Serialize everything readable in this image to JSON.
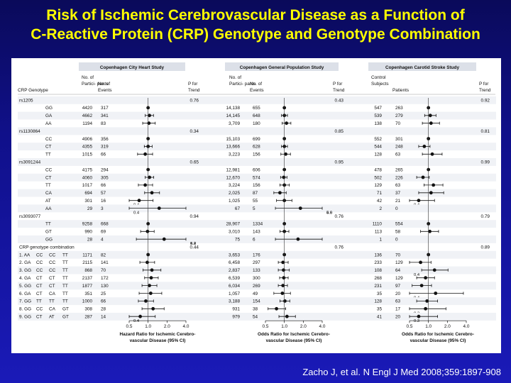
{
  "slide": {
    "title_line1": "Risk of Ischemic Cerebrovascular Disease as a Function of",
    "title_line2": "C-Reactive Protein (CRP) Genotype and Genotype Combination",
    "citation": "Zacho J, et al. N Engl J Med 2008;359:1897-908"
  },
  "colors": {
    "background": "#1010a0",
    "title": "#ffff00",
    "header_bar": "#dce0e8",
    "dot": "#111111"
  },
  "table": {
    "first_col_header": "CRP Genotype",
    "combo_header": "CRP genotype combination",
    "studies": [
      {
        "name": "Copenhagen City Heart Study",
        "col1": "No. of Partici- pants",
        "col2": "No. of Events",
        "col3": "P for Trend",
        "axis_label_line1": "Hazard Ratio for Ischemic Cerebro-",
        "axis_label_line2": "vascular Disease (95% CI)"
      },
      {
        "name": "Copenhagen General Population Study",
        "col1": "No. of Partici- pants",
        "col2": "No. of Events",
        "col3": "P for Trend",
        "axis_label_line1": "Odds Ratio for Ischemic Cerebro-",
        "axis_label_line2": "vascular Disease (95% CI)"
      },
      {
        "name": "Copenhagen Carotid Stroke Study",
        "col1": "Control Subjects",
        "col2": "Patients",
        "col3": "P for Trend",
        "axis_label_line1": "Odds Ratio for Ischemic Cerebro-",
        "axis_label_line2": "vascular Disease (95% CI)"
      }
    ]
  },
  "chart_data": {
    "type": "forest",
    "x_scale": "log",
    "xlim": [
      0.5,
      4.0
    ],
    "x_ticks": [
      "0.5",
      "1.0",
      "2.0",
      "4.0"
    ],
    "reference_line": 1.0,
    "rows": [
      {
        "kind": "header",
        "label": "rs1205",
        "p": [
          "0.76",
          "0.43",
          "0.92"
        ]
      },
      {
        "kind": "data",
        "genotype": [
          "GG"
        ],
        "cells": [
          [
            "4420",
            "317"
          ],
          [
            "14,138",
            "655"
          ],
          [
            "547",
            "263"
          ]
        ],
        "ci": [
          [
            1.0,
            1.0,
            1.0
          ],
          [
            1.0,
            1.0,
            1.0
          ],
          [
            1.0,
            1.0,
            1.0
          ]
        ]
      },
      {
        "kind": "data",
        "genotype": [
          "GA"
        ],
        "cells": [
          [
            "4662",
            "341"
          ],
          [
            "14,145",
            "648"
          ],
          [
            "539",
            "279"
          ]
        ],
        "ci": [
          [
            1.05,
            0.9,
            1.22
          ],
          [
            1.0,
            0.9,
            1.12
          ],
          [
            1.07,
            0.87,
            1.32
          ]
        ]
      },
      {
        "kind": "data",
        "genotype": [
          "AA"
        ],
        "cells": [
          [
            "1194",
            "83"
          ],
          [
            "3,709",
            "180"
          ],
          [
            "138",
            "70"
          ]
        ],
        "ci": [
          [
            1.03,
            0.82,
            1.3
          ],
          [
            1.08,
            0.92,
            1.27
          ],
          [
            1.1,
            0.8,
            1.5
          ]
        ]
      },
      {
        "kind": "header",
        "label": "rs1130864",
        "p": [
          "0.34",
          "0.85",
          "0.81"
        ]
      },
      {
        "kind": "data",
        "genotype": [
          "CC"
        ],
        "cells": [
          [
            "4906",
            "356"
          ],
          [
            "15,103",
            "699"
          ],
          [
            "552",
            "301"
          ]
        ],
        "ci": [
          [
            1.0,
            1.0,
            1.0
          ],
          [
            1.0,
            1.0,
            1.0
          ],
          [
            1.0,
            1.0,
            1.0
          ]
        ]
      },
      {
        "kind": "data",
        "genotype": [
          "CT"
        ],
        "cells": [
          [
            "4355",
            "319"
          ],
          [
            "13,666",
            "628"
          ],
          [
            "544",
            "248"
          ]
        ],
        "ci": [
          [
            1.0,
            0.87,
            1.16
          ],
          [
            1.0,
            0.9,
            1.12
          ],
          [
            0.86,
            0.7,
            1.06
          ]
        ]
      },
      {
        "kind": "data",
        "genotype": [
          "TT"
        ],
        "cells": [
          [
            "1015",
            "66"
          ],
          [
            "3,223",
            "156"
          ],
          [
            "128",
            "63"
          ]
        ],
        "ci": [
          [
            0.9,
            0.68,
            1.18
          ],
          [
            1.05,
            0.88,
            1.25
          ],
          [
            1.15,
            0.8,
            1.65
          ]
        ]
      },
      {
        "kind": "header",
        "label": "rs3091244",
        "p": [
          "0.65",
          "0.95",
          "0.99"
        ]
      },
      {
        "kind": "data",
        "genotype": [
          "CC"
        ],
        "cells": [
          [
            "4175",
            "294"
          ],
          [
            "12,981",
            "606"
          ],
          [
            "478",
            "265"
          ]
        ],
        "ci": [
          [
            1.0,
            1.0,
            1.0
          ],
          [
            1.0,
            1.0,
            1.0
          ],
          [
            1.0,
            1.0,
            1.0
          ]
        ]
      },
      {
        "kind": "data",
        "genotype": [
          "CT"
        ],
        "cells": [
          [
            "4060",
            "305"
          ],
          [
            "12,670",
            "574"
          ],
          [
            "502",
            "226"
          ]
        ],
        "ci": [
          [
            1.05,
            0.9,
            1.23
          ],
          [
            0.98,
            0.87,
            1.1
          ],
          [
            0.82,
            0.65,
            1.03
          ]
        ]
      },
      {
        "kind": "data",
        "genotype": [
          "TT"
        ],
        "cells": [
          [
            "1017",
            "66"
          ],
          [
            "3,224",
            "156"
          ],
          [
            "129",
            "63"
          ]
        ],
        "ci": [
          [
            0.9,
            0.7,
            1.18
          ],
          [
            1.0,
            0.85,
            1.2
          ],
          [
            1.2,
            0.85,
            1.7
          ]
        ]
      },
      {
        "kind": "data",
        "genotype": [
          "CA"
        ],
        "cells": [
          [
            "694",
            "57"
          ],
          [
            "2,025",
            "87"
          ],
          [
            "71",
            "37"
          ]
        ],
        "ci": [
          [
            1.15,
            0.88,
            1.52
          ],
          [
            0.85,
            0.68,
            1.07
          ],
          [
            1.1,
            0.7,
            1.75
          ]
        ]
      },
      {
        "kind": "data",
        "genotype": [
          "AT"
        ],
        "cells": [
          [
            "301",
            "16"
          ],
          [
            "1,025",
            "55"
          ],
          [
            "42",
            "21"
          ]
        ],
        "ci": [
          [
            0.72,
            0.4,
            1.2
          ],
          [
            1.0,
            0.75,
            1.32
          ],
          [
            0.7,
            0.4,
            1.25
          ]
        ],
        "labels": [
          [
            "0.4",
            "left",
            0
          ],
          [],
          [
            "0.4",
            "below",
            0
          ]
        ]
      },
      {
        "kind": "data",
        "genotype": [
          "AA"
        ],
        "cells": [
          [
            "29",
            "3"
          ],
          [
            "67",
            "5"
          ],
          [
            "2",
            "0"
          ]
        ],
        "ci": [
          [
            1.5,
            0.4,
            5.0
          ],
          [
            1.8,
            0.72,
            4.6
          ],
          []
        ],
        "labels": [
          [
            "0.4",
            "left",
            0
          ],
          [
            "5.0",
            "right",
            0
          ]
        ],
        "labels_b": [
          [],
          [
            "4.6",
            "right",
            0
          ]
        ]
      },
      {
        "kind": "header",
        "label": "rs3093077",
        "p": [
          "0.94",
          "0.76",
          "0.79"
        ]
      },
      {
        "kind": "data",
        "genotype": [
          "TT"
        ],
        "cells": [
          [
            "9258",
            "668"
          ],
          [
            "28,907",
            "1334"
          ],
          [
            "1110",
            "554"
          ]
        ],
        "ci": [
          [
            1.0,
            1.0,
            1.0
          ],
          [
            1.0,
            1.0,
            1.0
          ],
          [
            1.0,
            1.0,
            1.0
          ]
        ]
      },
      {
        "kind": "data",
        "genotype": [
          "GT"
        ],
        "cells": [
          [
            "990",
            "69"
          ],
          [
            "3,010",
            "143"
          ],
          [
            "113",
            "58"
          ]
        ],
        "ci": [
          [
            0.98,
            0.76,
            1.25
          ],
          [
            1.0,
            0.85,
            1.18
          ],
          [
            1.05,
            0.75,
            1.45
          ]
        ]
      },
      {
        "kind": "data",
        "genotype": [
          "GG"
        ],
        "cells": [
          [
            "28",
            "4"
          ],
          [
            "75",
            "6"
          ],
          [
            "1",
            "0"
          ]
        ],
        "ci": [
          [
            1.8,
            0.65,
            5.4
          ],
          [
            1.65,
            0.72,
            4.2
          ],
          []
        ],
        "labels": [
          [
            "5.4",
            "right",
            0
          ]
        ],
        "labels_b": [
          [
            "4.2",
            "right",
            0
          ]
        ]
      },
      {
        "kind": "combo_header",
        "label": "CRP genotype combination",
        "p": [
          "0.44",
          "0.76",
          "0.89"
        ]
      },
      {
        "kind": "data",
        "genotype": [
          "1. AA",
          "CC",
          "CC",
          "TT"
        ],
        "cells": [
          [
            "1171",
            "82"
          ],
          [
            "3,653",
            "176"
          ],
          [
            "136",
            "70"
          ]
        ],
        "ci": [
          [
            1.0,
            1.0,
            1.0
          ],
          [
            1.0,
            1.0,
            1.0
          ],
          [
            1.0,
            1.0,
            1.0
          ]
        ]
      },
      {
        "kind": "data",
        "genotype": [
          "2. GA",
          "CC",
          "CC",
          "TT"
        ],
        "cells": [
          [
            "2115",
            "141"
          ],
          [
            "6,458",
            "297"
          ],
          [
            "233",
            "129"
          ]
        ],
        "ci": [
          [
            0.97,
            0.74,
            1.27
          ],
          [
            0.95,
            0.8,
            1.15
          ],
          [
            0.75,
            0.5,
            1.1
          ]
        ]
      },
      {
        "kind": "data",
        "genotype": [
          "3. GG",
          "CC",
          "CC",
          "TT"
        ],
        "cells": [
          [
            "868",
            "70"
          ],
          [
            "2,837",
            "133"
          ],
          [
            "108",
            "64"
          ]
        ],
        "ci": [
          [
            1.15,
            0.83,
            1.6
          ],
          [
            0.97,
            0.8,
            1.2
          ],
          [
            1.25,
            0.78,
            2.05
          ]
        ],
        "labels": [
          [],
          [],
          [
            "0.4",
            "left",
            0
          ]
        ]
      },
      {
        "kind": "data",
        "genotype": [
          "4. GA",
          "CT",
          "CT",
          "TT"
        ],
        "cells": [
          [
            "2137",
            "172"
          ],
          [
            "6,539",
            "300"
          ],
          [
            "268",
            "129"
          ]
        ],
        "ci": [
          [
            1.12,
            0.88,
            1.45
          ],
          [
            0.98,
            0.84,
            1.15
          ],
          [
            0.9,
            0.65,
            1.25
          ]
        ]
      },
      {
        "kind": "data",
        "genotype": [
          "5. GG",
          "CT",
          "CT",
          "TT"
        ],
        "cells": [
          [
            "1877",
            "130"
          ],
          [
            "6,034",
            "269"
          ],
          [
            "231",
            "97"
          ]
        ],
        "ci": [
          [
            1.05,
            0.8,
            1.38
          ],
          [
            0.95,
            0.8,
            1.12
          ],
          [
            0.78,
            0.55,
            1.12
          ]
        ]
      },
      {
        "kind": "data",
        "genotype": [
          "6. GA",
          "CT",
          "CA",
          "TT"
        ],
        "cells": [
          [
            "351",
            "25"
          ],
          [
            "1,057",
            "49"
          ],
          [
            "35",
            "20"
          ]
        ],
        "ci": [
          [
            1.1,
            0.72,
            1.65
          ],
          [
            0.93,
            0.68,
            1.25
          ],
          [
            1.3,
            0.45,
            3.6
          ]
        ],
        "labels": [
          [],
          [],
          [
            "0.4",
            "left",
            0
          ]
        ]
      },
      {
        "kind": "data",
        "genotype": [
          "7. GG",
          "TT",
          "TT",
          "TT"
        ],
        "cells": [
          [
            "1000",
            "66"
          ],
          [
            "3,188",
            "154"
          ],
          [
            "128",
            "63"
          ]
        ],
        "ci": [
          [
            0.92,
            0.7,
            1.22
          ],
          [
            1.02,
            0.85,
            1.22
          ],
          [
            0.95,
            0.65,
            1.4
          ]
        ]
      },
      {
        "kind": "data",
        "genotype": [
          "8. GG",
          "CC",
          "CA",
          "GT"
        ],
        "cells": [
          [
            "308",
            "28"
          ],
          [
            "931",
            "38"
          ],
          [
            "35",
            "17"
          ]
        ],
        "ci": [
          [
            1.2,
            0.8,
            1.8
          ],
          [
            0.75,
            0.55,
            1.05
          ],
          [
            0.9,
            0.45,
            1.9
          ]
        ],
        "labels": [
          [],
          [],
          [
            "0.3",
            "left",
            0
          ]
        ]
      },
      {
        "kind": "data",
        "genotype": [
          "9. GG",
          "CT",
          "AT",
          "GT"
        ],
        "cells": [
          [
            "287",
            "14"
          ],
          [
            "979",
            "54"
          ],
          [
            "41",
            "20"
          ]
        ],
        "ci": [
          [
            0.75,
            0.45,
            1.3
          ],
          [
            1.1,
            0.82,
            1.5
          ],
          [
            0.7,
            0.35,
            1.4
          ]
        ],
        "labels": [
          [
            "0.4",
            "left",
            0
          ],
          [],
          [
            "0.3",
            "left",
            0
          ]
        ]
      }
    ]
  }
}
